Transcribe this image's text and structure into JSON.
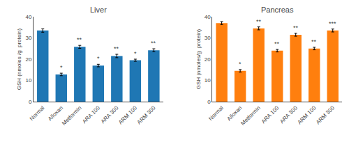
{
  "chart_data": [
    {
      "type": "bar",
      "title": "Liver",
      "categories": [
        "Normal",
        "Alloxan",
        "Metformin",
        "ARA 100",
        "ARA 300",
        "ARM 100",
        "ARM 300"
      ],
      "values": [
        33.5,
        12.8,
        25.8,
        17.0,
        21.5,
        19.5,
        24.2
      ],
      "errors": [
        0.8,
        0.6,
        0.7,
        0.6,
        0.8,
        0.5,
        0.7
      ],
      "annotations": [
        {
          "category": "Alloxan",
          "text": "*"
        },
        {
          "category": "Metformin",
          "text": "**"
        },
        {
          "category": "ARA 100",
          "text": "*"
        },
        {
          "category": "ARA 300",
          "text": "**"
        },
        {
          "category": "ARM 100",
          "text": "*"
        },
        {
          "category": "ARM 300",
          "text": "**"
        }
      ],
      "ylim": [
        0,
        40
      ],
      "yticks": [
        0,
        10,
        20,
        30,
        40
      ],
      "ylabel": "GSH (nmoles /g  protein)",
      "grid": false
    },
    {
      "type": "bar",
      "title": "Pancreas",
      "categories": [
        "Normal",
        "Alloxan",
        "Metformin",
        "ARA 100",
        "ARA 300",
        "ARM 100",
        "ARM 300"
      ],
      "values": [
        37.0,
        14.5,
        34.5,
        24.0,
        31.5,
        25.0,
        33.5
      ],
      "errors": [
        0.7,
        0.6,
        0.7,
        0.6,
        0.7,
        0.6,
        0.7
      ],
      "annotations": [
        {
          "category": "Alloxan",
          "text": "*"
        },
        {
          "category": "Metformin",
          "text": "**"
        },
        {
          "category": "ARA 100",
          "text": "**"
        },
        {
          "category": "ARA 300",
          "text": "**"
        },
        {
          "category": "ARM 100",
          "text": "**"
        },
        {
          "category": "ARM 300",
          "text": "***"
        }
      ],
      "ylim": [
        0,
        40
      ],
      "yticks": [
        0,
        10,
        20,
        30,
        40
      ],
      "ylabel": "GSH (nmoles/g  protein)",
      "grid": false
    }
  ]
}
